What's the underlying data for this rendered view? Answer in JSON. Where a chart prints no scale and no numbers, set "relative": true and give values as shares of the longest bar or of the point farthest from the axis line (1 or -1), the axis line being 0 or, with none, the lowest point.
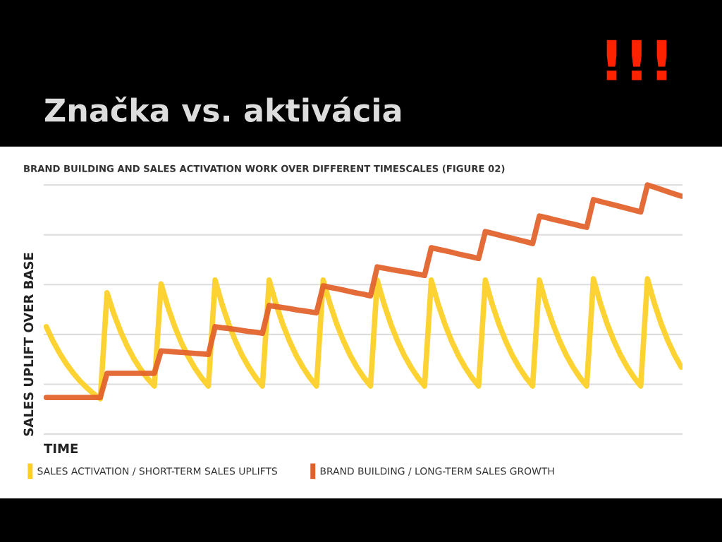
{
  "chart_data": {
    "type": "line",
    "title": "Značka vs. aktivácia",
    "subtitle": "BRAND BUILDING AND SALES ACTIVATION WORK OVER DIFFERENT TIMESCALES (FIGURE 02)",
    "xlabel": "TIME",
    "ylabel": "SALES UPLIFT OVER BASE",
    "annotations": [
      "!!!"
    ],
    "relative": true,
    "grid": "y",
    "legend": "bottom",
    "marker": "none",
    "line_style": "solid",
    "categories": [
      null,
      null,
      null,
      null,
      null,
      null,
      null,
      null,
      null,
      null,
      null,
      null,
      null,
      null,
      null,
      null,
      null,
      null,
      null,
      null,
      null,
      null,
      null,
      null,
      null,
      null,
      null,
      null,
      null,
      null,
      null,
      null,
      null,
      null,
      null,
      null,
      null,
      null,
      null,
      null,
      null,
      null,
      null,
      null,
      null,
      null,
      null,
      null,
      null,
      null,
      null,
      null,
      null,
      null,
      null,
      null,
      null,
      null,
      null,
      null,
      null,
      null,
      null,
      null,
      null,
      null,
      null,
      null,
      null,
      null,
      null,
      null,
      null,
      null,
      null,
      null,
      null,
      null,
      null,
      null,
      null,
      null,
      null,
      null,
      null,
      null,
      null,
      null,
      null,
      null,
      null,
      null,
      null,
      null,
      null
    ],
    "series": [
      {
        "name": "SALES ACTIVATION / SHORT-TERM SALES UPLIFTS",
        "color": "#fcd022",
        "values": [
          0.431,
          0.373,
          0.324,
          0.281,
          0.245,
          0.213,
          0.186,
          0.162,
          0.142,
          0.567,
          0.483,
          0.412,
          0.352,
          0.301,
          0.259,
          0.223,
          0.193,
          0.603,
          0.511,
          0.433,
          0.367,
          0.312,
          0.265,
          0.226,
          0.193,
          0.618,
          0.523,
          0.442,
          0.374,
          0.316,
          0.268,
          0.227,
          0.193,
          0.618,
          0.523,
          0.442,
          0.374,
          0.316,
          0.268,
          0.227,
          0.193,
          0.618,
          0.523,
          0.442,
          0.374,
          0.316,
          0.268,
          0.227,
          0.193,
          0.618,
          0.523,
          0.442,
          0.374,
          0.316,
          0.268,
          0.227,
          0.193,
          0.618,
          0.523,
          0.442,
          0.374,
          0.316,
          0.268,
          0.227,
          0.193,
          0.618,
          0.523,
          0.442,
          0.374,
          0.316,
          0.268,
          0.227,
          0.193,
          0.618,
          0.523,
          0.442,
          0.374,
          0.316,
          0.268,
          0.227,
          0.193,
          0.623,
          0.527,
          0.445,
          0.376,
          0.318,
          0.269,
          0.228,
          0.193,
          0.623,
          0.527,
          0.445,
          0.376,
          0.318,
          0.269
        ]
      },
      {
        "name": "BRAND BUILDING / LONG-TERM SALES GROWTH",
        "color": "#e2612a",
        "values": [
          0.147,
          0.147,
          0.147,
          0.147,
          0.147,
          0.147,
          0.147,
          0.147,
          0.147,
          0.244,
          0.244,
          0.244,
          0.244,
          0.244,
          0.244,
          0.244,
          0.244,
          0.334,
          0.332,
          0.33,
          0.328,
          0.326,
          0.324,
          0.322,
          0.32,
          0.431,
          0.427,
          0.424,
          0.42,
          0.416,
          0.412,
          0.409,
          0.405,
          0.516,
          0.512,
          0.508,
          0.504,
          0.499,
          0.495,
          0.491,
          0.487,
          0.595,
          0.589,
          0.584,
          0.578,
          0.572,
          0.566,
          0.561,
          0.555,
          0.671,
          0.666,
          0.661,
          0.656,
          0.652,
          0.647,
          0.642,
          0.637,
          0.748,
          0.742,
          0.736,
          0.73,
          0.723,
          0.717,
          0.711,
          0.705,
          0.813,
          0.806,
          0.799,
          0.792,
          0.786,
          0.779,
          0.772,
          0.765,
          0.875,
          0.869,
          0.862,
          0.856,
          0.849,
          0.843,
          0.836,
          0.83,
          0.941,
          0.934,
          0.927,
          0.92,
          0.913,
          0.906,
          0.899,
          0.892,
          1.0,
          0.991,
          0.982,
          0.973,
          0.964,
          0.955
        ]
      }
    ]
  }
}
